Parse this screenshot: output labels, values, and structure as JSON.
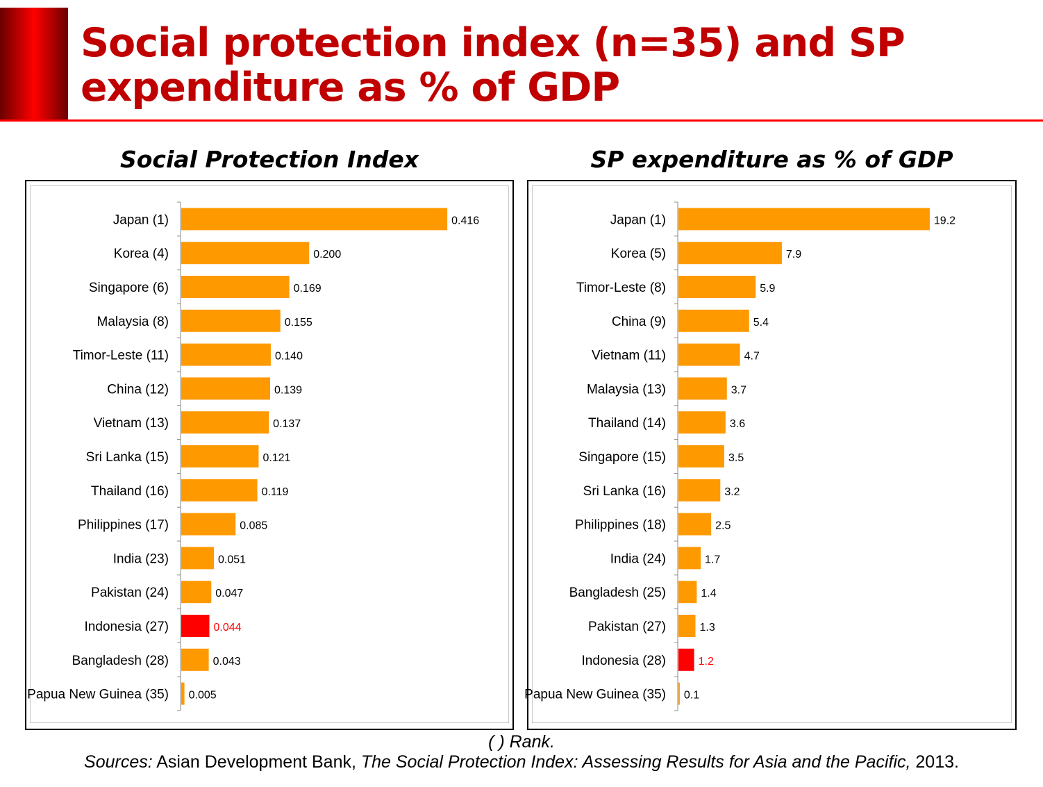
{
  "title_line1": "Social protection index (n=35) and SP",
  "title_line2": "expenditure as % of GDP",
  "chart_data": [
    {
      "type": "bar",
      "orientation": "horizontal",
      "title": "Social Protection Index",
      "categories": [
        "Japan (1)",
        "Korea (4)",
        "Singapore (6)",
        "Malaysia (8)",
        "Timor-Leste (11)",
        "China (12)",
        "Vietnam (13)",
        "Sri Lanka (15)",
        "Thailand (16)",
        "Philippines (17)",
        "India (23)",
        "Pakistan (24)",
        "Indonesia (27)",
        "Bangladesh (28)",
        "Papua New Guinea (35)"
      ],
      "values": [
        0.416,
        0.2,
        0.169,
        0.155,
        0.14,
        0.139,
        0.137,
        0.121,
        0.119,
        0.085,
        0.051,
        0.047,
        0.044,
        0.043,
        0.005
      ],
      "value_labels": [
        "0.416",
        "0.200",
        "0.169",
        "0.155",
        "0.140",
        "0.139",
        "0.137",
        "0.121",
        "0.119",
        "0.085",
        "0.051",
        "0.047",
        "0.044",
        "0.043",
        "0.005"
      ],
      "highlight": "Indonesia (27)",
      "xlim": [
        0,
        0.5
      ],
      "bar_color": "#ff9900",
      "highlight_color": "#ff0000"
    },
    {
      "type": "bar",
      "orientation": "horizontal",
      "title": "SP expenditure as % of GDP",
      "categories": [
        "Japan (1)",
        "Korea (5)",
        "Timor-Leste (8)",
        "China (9)",
        "Vietnam (11)",
        "Malaysia (13)",
        "Thailand (14)",
        "Singapore (15)",
        "Sri Lanka (16)",
        "Philippines (18)",
        "India (24)",
        "Bangladesh (25)",
        "Pakistan (27)",
        "Indonesia (28)",
        "Papua New Guinea (35)"
      ],
      "values": [
        19.2,
        7.9,
        5.9,
        5.4,
        4.7,
        3.7,
        3.6,
        3.5,
        3.2,
        2.5,
        1.7,
        1.4,
        1.3,
        1.2,
        0.1
      ],
      "value_labels": [
        "19.2",
        "7.9",
        "5.9",
        "5.4",
        "4.7",
        "3.7",
        "3.6",
        "3.5",
        "3.2",
        "2.5",
        "1.7",
        "1.4",
        "1.3",
        "1.2",
        "0.1"
      ],
      "highlight": "Indonesia (28)",
      "xlim": [
        0,
        25
      ],
      "bar_color": "#ff9900",
      "highlight_color": "#ff0000"
    }
  ],
  "footnote_rank": "( ) Rank.",
  "sources_label": "Sources:",
  "sources_publisher": " Asian Development Bank, ",
  "sources_title": "The Social Protection Index: Assessing Results for Asia and the Pacific,",
  "sources_year": " 2013."
}
